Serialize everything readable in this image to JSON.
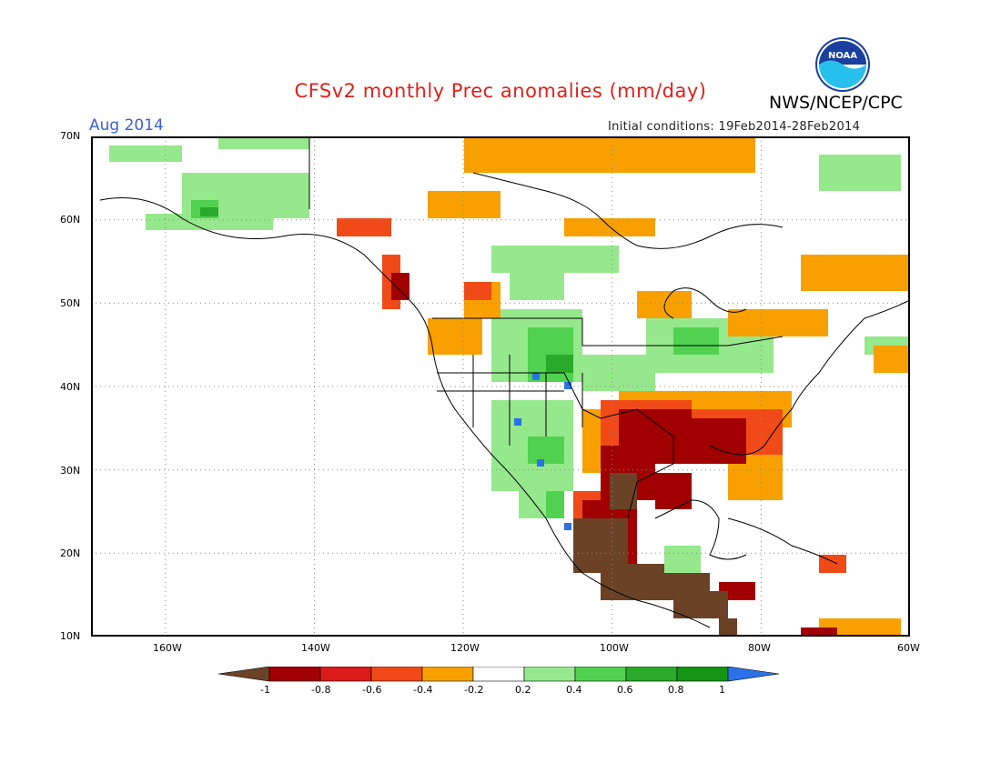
{
  "title": "CFSv2 monthly Prec anomalies (mm/day)",
  "agency": "NWS/NCEP/CPC",
  "month": "Aug 2014",
  "initial_conditions": "Initial conditions: 19Feb2014-28Feb2014",
  "logo_text": "NOAA",
  "lat_labels": [
    "70N",
    "60N",
    "50N",
    "40N",
    "30N",
    "20N",
    "10N"
  ],
  "lon_labels": [
    "160W",
    "140W",
    "120W",
    "100W",
    "80W",
    "60W"
  ],
  "colorbar": {
    "labels": [
      "-1",
      "-0.8",
      "-0.6",
      "-0.4",
      "-0.2",
      "0.2",
      "0.4",
      "0.6",
      "0.8",
      "1"
    ],
    "colors": [
      "#6b4226",
      "#a00000",
      "#dd1a1a",
      "#f04a18",
      "#f8a000",
      "#ffffff",
      "#96e88c",
      "#50d250",
      "#2aaa2a",
      "#139413",
      "#2a72e6"
    ]
  },
  "map_extent": {
    "lon": [
      -170,
      -60
    ],
    "lat": [
      10,
      70
    ]
  }
}
